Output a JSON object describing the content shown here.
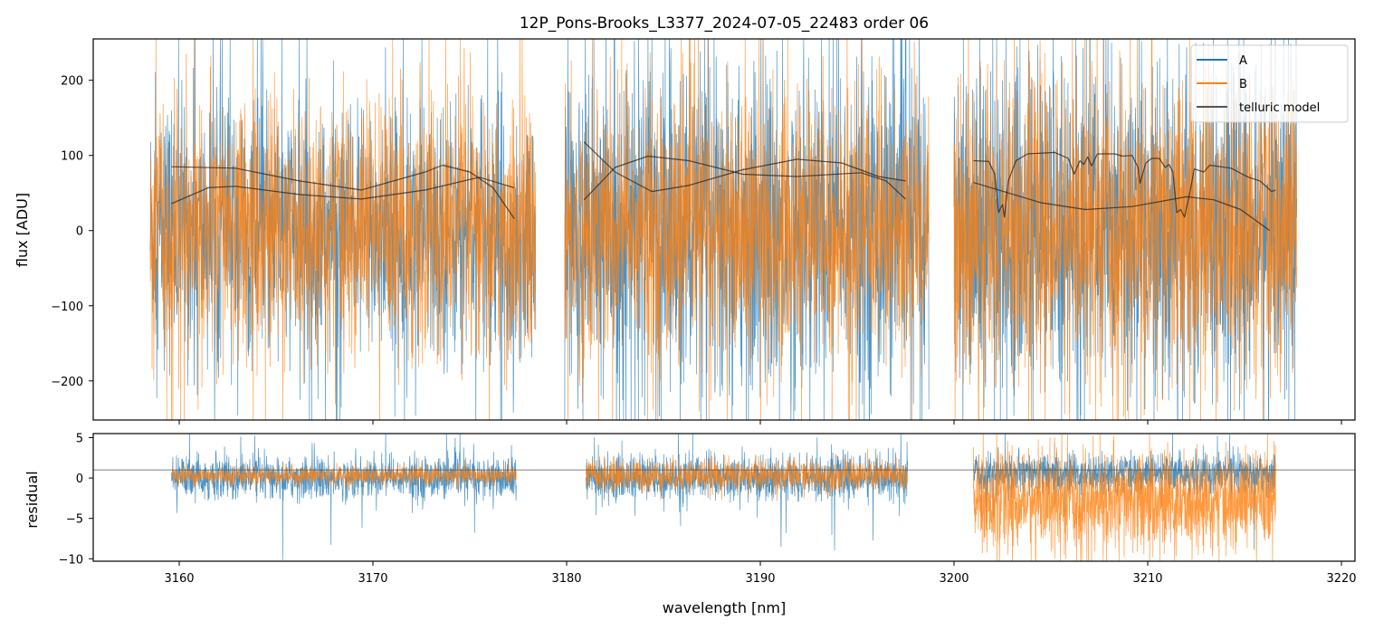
{
  "chart_data": {
    "type": "line",
    "title": "12P_Pons-Brooks_L3377_2024-07-05_22483  order 06",
    "xlabel": "wavelength [nm]",
    "xlim": [
      3155.56,
      3220.7
    ],
    "xticks": [
      3160,
      3170,
      3180,
      3190,
      3200,
      3210,
      3220
    ],
    "colors": {
      "A": "#1f77b4",
      "B": "#ff7f0e",
      "model": "#222222"
    },
    "legend": {
      "placement": "top-right",
      "entries": [
        "A",
        "B",
        "telluric model"
      ]
    },
    "top_panel": {
      "ylabel": "flux [ADU]",
      "ylim": [
        -252,
        255
      ],
      "yticks": [
        -200,
        -100,
        0,
        100,
        200
      ],
      "yticklabels": [
        "−200",
        "−100",
        "0",
        "100",
        "200"
      ],
      "segments": [
        [
          3158.5,
          3178.4
        ],
        [
          3179.9,
          3198.7
        ],
        [
          3200.0,
          3217.7
        ]
      ],
      "noise_sigma_approx": {
        "A": [
          85,
          110,
          110
        ],
        "B": [
          85,
          90,
          100
        ]
      },
      "telluric_model": [
        [
          [
            3159.6,
            85
          ],
          [
            3162.9,
            83
          ],
          [
            3166.2,
            66
          ],
          [
            3169.4,
            54
          ],
          [
            3172.7,
            78
          ],
          [
            3173.6,
            87
          ],
          [
            3175.0,
            78
          ],
          [
            3176.2,
            57
          ],
          [
            3177.3,
            16
          ]
        ],
        [
          [
            3159.6,
            36
          ],
          [
            3161.5,
            57
          ],
          [
            3162.9,
            59
          ],
          [
            3166.2,
            48
          ],
          [
            3169.4,
            42
          ],
          [
            3172.7,
            54
          ],
          [
            3175.5,
            71
          ],
          [
            3177.3,
            57
          ]
        ],
        [
          [
            3180.9,
            118
          ],
          [
            3182.5,
            78
          ],
          [
            3184.4,
            52
          ],
          [
            3186.3,
            60
          ],
          [
            3189.1,
            81
          ],
          [
            3191.9,
            95
          ],
          [
            3194.2,
            90
          ],
          [
            3196.1,
            72
          ],
          [
            3197.5,
            66
          ]
        ],
        [
          [
            3180.9,
            41
          ],
          [
            3182.5,
            84
          ],
          [
            3184.2,
            99
          ],
          [
            3186.3,
            93
          ],
          [
            3189.1,
            75
          ],
          [
            3191.9,
            72
          ],
          [
            3195.2,
            77
          ],
          [
            3196.5,
            66
          ],
          [
            3197.5,
            42
          ]
        ],
        [
          [
            3201.0,
            64
          ],
          [
            3204.5,
            37
          ],
          [
            3206.8,
            28
          ],
          [
            3209.2,
            32
          ],
          [
            3212.0,
            45
          ],
          [
            3213.4,
            41
          ],
          [
            3214.8,
            28
          ],
          [
            3216.3,
            0
          ]
        ],
        [
          [
            3201.0,
            93
          ],
          [
            3201.8,
            92
          ],
          [
            3202.1,
            75
          ],
          [
            3202.3,
            24
          ],
          [
            3202.5,
            35
          ],
          [
            3202.6,
            18
          ],
          [
            3202.8,
            66
          ],
          [
            3203.2,
            93
          ],
          [
            3203.8,
            102
          ],
          [
            3205.2,
            104
          ],
          [
            3205.9,
            96
          ],
          [
            3206.2,
            75
          ],
          [
            3206.5,
            93
          ],
          [
            3206.7,
            88
          ],
          [
            3206.9,
            98
          ],
          [
            3207.1,
            86
          ],
          [
            3207.4,
            102
          ],
          [
            3208.3,
            102
          ],
          [
            3208.7,
            99
          ],
          [
            3209.2,
            100
          ],
          [
            3209.5,
            84
          ],
          [
            3209.6,
            63
          ],
          [
            3209.9,
            90
          ],
          [
            3210.2,
            96
          ],
          [
            3210.6,
            96
          ],
          [
            3210.9,
            84
          ],
          [
            3211.1,
            88
          ],
          [
            3211.3,
            78
          ],
          [
            3211.5,
            24
          ],
          [
            3211.7,
            28
          ],
          [
            3211.9,
            18
          ],
          [
            3212.2,
            54
          ],
          [
            3212.4,
            82
          ],
          [
            3212.9,
            78
          ],
          [
            3213.2,
            87
          ],
          [
            3214.3,
            83
          ],
          [
            3215.2,
            71
          ],
          [
            3215.8,
            66
          ],
          [
            3216.1,
            59
          ],
          [
            3216.4,
            52
          ],
          [
            3216.6,
            54
          ]
        ]
      ]
    },
    "bottom_panel": {
      "ylabel": "residual",
      "ylim": [
        -10.3,
        5.5
      ],
      "yticks": [
        -10,
        -5,
        0,
        5
      ],
      "yticklabels": [
        "−10",
        "−5",
        "0",
        "5"
      ],
      "reference_line": 1.0,
      "segments": [
        [
          3159.6,
          3177.4
        ],
        [
          3181.0,
          3197.6
        ],
        [
          3201.0,
          3216.6
        ]
      ],
      "noise_sigma_approx": {
        "A": [
          1.3,
          1.4,
          1.2
        ],
        "B": [
          0.6,
          1.0,
          3.0
        ]
      },
      "offset_approx": {
        "A": [
          0,
          0,
          0.5
        ],
        "B": [
          0.3,
          0.3,
          -3
        ]
      }
    }
  }
}
